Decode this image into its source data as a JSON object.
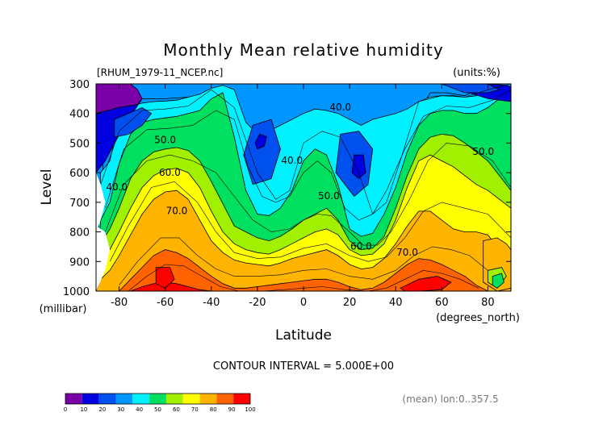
{
  "chart_data": {
    "type": "contour",
    "title": "Monthly Mean relative humidity",
    "file_label": "[RHUM_1979-11_NCEP.nc]",
    "units_label": "(units:%)",
    "xlabel": "Latitude",
    "x_unit_label": "(degrees_north)",
    "ylabel": "Level",
    "y_unit_label": "(millibar)",
    "x_ticks": [
      -80,
      -60,
      -40,
      -20,
      0,
      20,
      40,
      60,
      80
    ],
    "y_ticks": [
      300,
      400,
      500,
      600,
      700,
      800,
      900,
      1000
    ],
    "xlim": [
      -90,
      90
    ],
    "ylim": [
      1000,
      300
    ],
    "contour_interval_text": "CONTOUR INTERVAL = 5.000E+00",
    "footer_note": "(mean) lon:0..357.5",
    "contour_labels": [
      {
        "text": "40.0",
        "lat": 16,
        "lev": 390
      },
      {
        "text": "40.0",
        "lat": -5,
        "lev": 570
      },
      {
        "text": "40.0",
        "lat": -81,
        "lev": 660
      },
      {
        "text": "50.0",
        "lat": -60,
        "lev": 500
      },
      {
        "text": "50.0",
        "lat": 11,
        "lev": 690
      },
      {
        "text": "50.0",
        "lat": 78,
        "lev": 540
      },
      {
        "text": "60.0",
        "lat": -58,
        "lev": 610
      },
      {
        "text": "60.0",
        "lat": 25,
        "lev": 860
      },
      {
        "text": "70.0",
        "lat": -55,
        "lev": 740
      },
      {
        "text": "70.0",
        "lat": 45,
        "lev": 880
      }
    ],
    "colorbar": {
      "levels": [
        0,
        10,
        20,
        30,
        40,
        50,
        60,
        70,
        80,
        90,
        100
      ],
      "colors": [
        "#7a00a8",
        "#0000e0",
        "#0050f0",
        "#0096ff",
        "#00f0ff",
        "#00e060",
        "#a0f000",
        "#ffff00",
        "#ffb400",
        "#ff6400",
        "#ff0000"
      ]
    },
    "bands": [
      {
        "threshold": 35,
        "color": "#0096ff",
        "lat": [
          -85,
          -78,
          -70,
          -60,
          -50,
          -40,
          -35,
          -30,
          -25,
          -18,
          -10,
          -5,
          0,
          10,
          20,
          25,
          30,
          35,
          40,
          48,
          55,
          62,
          70,
          80,
          90
        ],
        "lev": [
          300,
          345,
          350,
          350,
          345,
          330,
          360,
          560,
          700,
          740,
          700,
          480,
          440,
          420,
          440,
          520,
          700,
          750,
          620,
          420,
          330,
          330,
          340,
          300,
          300
        ]
      },
      {
        "threshold": 40,
        "color": "#00f0ff",
        "lat": [
          -88,
          -84,
          -80,
          -75,
          -70,
          -65,
          -60,
          -55,
          -50,
          -45,
          -40,
          -35,
          -30,
          -25,
          -20,
          -15,
          -10,
          -5,
          0,
          5,
          10,
          15,
          20,
          25,
          30,
          35,
          40,
          45,
          50,
          55,
          60,
          65,
          70,
          75,
          80,
          85,
          90
        ],
        "lev": [
          600,
          560,
          420,
          375,
          365,
          360,
          358,
          355,
          345,
          335,
          315,
          305,
          320,
          430,
          470,
          460,
          440,
          420,
          400,
          385,
          390,
          400,
          420,
          440,
          420,
          410,
          400,
          385,
          360,
          345,
          340,
          340,
          345,
          340,
          330,
          315,
          310
        ]
      },
      {
        "threshold": 50,
        "color": "#00e060",
        "lat": [
          -88,
          -84,
          -80,
          -75,
          -70,
          -65,
          -60,
          -55,
          -50,
          -45,
          -40,
          -35,
          -30,
          -25,
          -20,
          -15,
          -10,
          -5,
          0,
          5,
          10,
          15,
          20,
          25,
          30,
          35,
          40,
          45,
          50,
          55,
          60,
          65,
          70,
          75,
          80,
          85,
          90
        ],
        "lev": [
          760,
          700,
          570,
          470,
          430,
          420,
          415,
          410,
          400,
          390,
          350,
          330,
          480,
          660,
          740,
          745,
          720,
          660,
          560,
          520,
          540,
          640,
          790,
          815,
          805,
          740,
          650,
          530,
          440,
          400,
          390,
          390,
          400,
          400,
          380,
          350,
          330
        ]
      },
      {
        "threshold": 60,
        "color": "#a0f000",
        "lat": [
          -88,
          -84,
          -80,
          -75,
          -70,
          -65,
          -60,
          -55,
          -50,
          -45,
          -40,
          -35,
          -30,
          -25,
          -20,
          -15,
          -10,
          -5,
          0,
          5,
          10,
          15,
          20,
          25,
          30,
          35,
          40,
          45,
          50,
          55,
          60,
          65,
          70,
          75,
          80,
          85,
          90
        ],
        "lev": [
          840,
          790,
          720,
          620,
          560,
          530,
          520,
          515,
          525,
          560,
          630,
          705,
          780,
          800,
          820,
          830,
          815,
          790,
          760,
          740,
          720,
          760,
          830,
          860,
          855,
          815,
          720,
          610,
          520,
          480,
          470,
          475,
          500,
          530,
          560,
          610,
          660
        ]
      },
      {
        "threshold": 65,
        "color": "#ffff00",
        "lat": [
          -88,
          -84,
          -80,
          -75,
          -70,
          -65,
          -60,
          -55,
          -50,
          -45,
          -40,
          -35,
          -30,
          -25,
          -20,
          -15,
          -10,
          -5,
          0,
          5,
          10,
          15,
          20,
          25,
          30,
          35,
          40,
          45,
          50,
          55,
          60,
          65,
          70,
          75,
          80,
          85,
          90
        ],
        "lev": [
          900,
          860,
          800,
          720,
          650,
          610,
          590,
          585,
          600,
          650,
          730,
          800,
          840,
          860,
          870,
          875,
          860,
          840,
          820,
          800,
          790,
          810,
          860,
          880,
          875,
          840,
          760,
          650,
          560,
          540,
          560,
          580,
          610,
          640,
          660,
          690,
          720
        ]
      },
      {
        "threshold": 70,
        "color": "#ffb400",
        "lat": [
          -88,
          -84,
          -80,
          -75,
          -70,
          -65,
          -60,
          -55,
          -50,
          -45,
          -40,
          -35,
          -30,
          -25,
          -20,
          -15,
          -10,
          -5,
          0,
          5,
          10,
          15,
          20,
          25,
          30,
          35,
          40,
          45,
          50,
          55,
          60,
          65,
          70,
          75,
          80,
          85,
          90
        ],
        "lev": [
          960,
          930,
          880,
          810,
          740,
          690,
          665,
          660,
          690,
          760,
          830,
          870,
          895,
          905,
          910,
          915,
          905,
          890,
          880,
          870,
          860,
          880,
          910,
          925,
          920,
          890,
          840,
          780,
          730,
          730,
          760,
          790,
          800,
          800,
          810,
          860,
          900
        ]
      },
      {
        "threshold": 80,
        "color": "#ff6400",
        "lat": [
          -80,
          -75,
          -70,
          -65,
          -60,
          -55,
          -50,
          -45,
          -40,
          -35,
          -30,
          -25,
          -20,
          -15,
          -10,
          -5,
          0,
          5,
          10,
          15,
          20,
          25,
          30,
          35,
          40,
          45,
          50,
          55,
          60,
          65,
          70,
          75,
          80
        ],
        "lev": [
          1000,
          960,
          920,
          880,
          860,
          870,
          890,
          920,
          950,
          975,
          990,
          990,
          985,
          980,
          975,
          970,
          965,
          960,
          960,
          970,
          985,
          995,
          990,
          970,
          940,
          910,
          890,
          895,
          910,
          930,
          950,
          980,
          1000
        ]
      },
      {
        "threshold": 90,
        "color": "#ff0000",
        "lat": [
          -75,
          -70,
          -65,
          -60,
          -55,
          -50,
          -45,
          -40,
          -35
        ],
        "lev": [
          1000,
          985,
          975,
          970,
          975,
          985,
          995,
          1000,
          1000
        ]
      }
    ],
    "cells": [
      {
        "color": "#7a00a8",
        "lat": [
          -90,
          -75,
          -72,
          -70,
          -72,
          -80,
          -90
        ],
        "lev": [
          300,
          300,
          320,
          350,
          370,
          380,
          400
        ]
      },
      {
        "color": "#0000e0",
        "lat": [
          -90,
          -80,
          -72,
          -70,
          -76,
          -82,
          -86,
          -90
        ],
        "lev": [
          400,
          380,
          370,
          350,
          420,
          500,
          560,
          600
        ]
      },
      {
        "color": "#0050f0",
        "lat": [
          -82,
          -76,
          -70,
          -66,
          -70,
          -76,
          -82
        ],
        "lev": [
          420,
          400,
          380,
          400,
          440,
          470,
          480
        ]
      },
      {
        "color": "#0000e0",
        "lat": [
          70,
          80,
          88,
          90,
          90,
          80,
          72
        ],
        "lev": [
          300,
          300,
          305,
          310,
          360,
          350,
          330
        ]
      },
      {
        "color": "#0050f0",
        "lat": [
          60,
          70,
          80,
          85,
          80,
          70
        ],
        "lev": [
          300,
          300,
          300,
          320,
          330,
          330
        ]
      },
      {
        "color": "#0050f0",
        "lat": [
          -22,
          -14,
          -10,
          -14,
          -22,
          -26
        ],
        "lev": [
          440,
          420,
          520,
          620,
          640,
          540
        ]
      },
      {
        "color": "#0000e0",
        "lat": [
          -19,
          -16,
          -17,
          -20,
          -21
        ],
        "lev": [
          470,
          478,
          510,
          520,
          500
        ]
      },
      {
        "color": "#0050f0",
        "lat": [
          16,
          24,
          30,
          28,
          22,
          14
        ],
        "lev": [
          470,
          460,
          520,
          640,
          680,
          600
        ]
      },
      {
        "color": "#0000e0",
        "lat": [
          22,
          26,
          27,
          24,
          21
        ],
        "lev": [
          540,
          540,
          600,
          620,
          600
        ]
      },
      {
        "color": "#ff0000",
        "lat": [
          -64,
          -58,
          -56,
          -60,
          -64
        ],
        "lev": [
          920,
          920,
          960,
          990,
          975
        ]
      },
      {
        "color": "#ff0000",
        "lat": [
          42,
          50,
          58,
          64,
          60,
          50,
          44
        ],
        "lev": [
          990,
          960,
          950,
          970,
          995,
          1000,
          1000
        ]
      },
      {
        "color": "#ffb400",
        "lat": [
          78,
          84,
          88,
          90,
          90,
          84,
          78
        ],
        "lev": [
          830,
          820,
          840,
          860,
          990,
          1000,
          970
        ]
      },
      {
        "color": "#a0f000",
        "lat": [
          80,
          86,
          88,
          84,
          80
        ],
        "lev": [
          930,
          920,
          950,
          990,
          970
        ]
      },
      {
        "color": "#00e060",
        "lat": [
          82,
          86,
          87,
          84,
          82
        ],
        "lev": [
          950,
          940,
          970,
          990,
          980
        ]
      }
    ],
    "contours": [
      {
        "lat": [
          -88,
          -80,
          -70,
          -60,
          -50,
          -40,
          -30,
          -20,
          -12,
          -6,
          0,
          8,
          16,
          24,
          30,
          36,
          42,
          50,
          60,
          70,
          80,
          90
        ],
        "lev": [
          640,
          460,
          390,
          385,
          375,
          320,
          380,
          600,
          690,
          660,
          500,
          460,
          480,
          600,
          740,
          700,
          560,
          360,
          340,
          345,
          320,
          300
        ]
      },
      {
        "lat": [
          -86,
          -78,
          -68,
          -58,
          -48,
          -38,
          -30,
          -24,
          -18,
          -12,
          -6,
          0,
          6,
          12,
          18,
          24,
          30,
          36,
          44,
          52,
          62,
          72,
          82,
          90
        ],
        "lev": [
          720,
          520,
          455,
          450,
          440,
          390,
          420,
          580,
          680,
          700,
          680,
          600,
          560,
          600,
          720,
          760,
          740,
          660,
          520,
          410,
          375,
          380,
          355,
          320
        ]
      },
      {
        "lat": [
          -86,
          -78,
          -68,
          -58,
          -48,
          -38,
          -30,
          -22,
          -14,
          -6,
          0,
          6,
          12,
          20,
          26,
          32,
          38,
          46,
          54,
          62,
          72,
          82,
          90
        ],
        "lev": [
          800,
          640,
          560,
          540,
          560,
          600,
          680,
          760,
          800,
          790,
          760,
          740,
          745,
          800,
          845,
          845,
          800,
          690,
          560,
          500,
          510,
          560,
          650
        ]
      },
      {
        "lat": [
          -84,
          -76,
          -66,
          -56,
          -46,
          -38,
          -30,
          -20,
          -10,
          0,
          10,
          20,
          28,
          36,
          44,
          52,
          60,
          70,
          80,
          90
        ],
        "lev": [
          900,
          780,
          650,
          630,
          700,
          800,
          870,
          890,
          885,
          855,
          840,
          880,
          900,
          885,
          820,
          730,
          700,
          720,
          740,
          820
        ]
      },
      {
        "lat": [
          -80,
          -72,
          -62,
          -54,
          -46,
          -38,
          -30,
          -20,
          -10,
          0,
          10,
          20,
          30,
          40,
          48,
          56,
          64,
          72,
          80
        ],
        "lev": [
          980,
          900,
          820,
          820,
          880,
          925,
          950,
          950,
          945,
          930,
          925,
          950,
          960,
          930,
          880,
          850,
          860,
          880,
          930
        ]
      },
      {
        "lat": [
          -76,
          -68,
          -60,
          -52,
          -44,
          -36,
          -28,
          -18,
          -8,
          0,
          8,
          18,
          28,
          36,
          44,
          52,
          60,
          68,
          76
        ],
        "lev": [
          1000,
          950,
          910,
          915,
          950,
          985,
          1000,
          1000,
          995,
          990,
          985,
          995,
          1000,
          990,
          960,
          930,
          940,
          960,
          990
        ]
      }
    ],
    "hatch": [
      {
        "lat": [
          -90,
          -88,
          -86,
          -88,
          -90
        ],
        "lev": [
          600,
          640,
          700,
          760,
          800
        ]
      },
      {
        "lat": [
          -90,
          -86,
          -84,
          -86,
          -90
        ],
        "lev": [
          780,
          800,
          860,
          930,
          1000
        ]
      }
    ]
  }
}
